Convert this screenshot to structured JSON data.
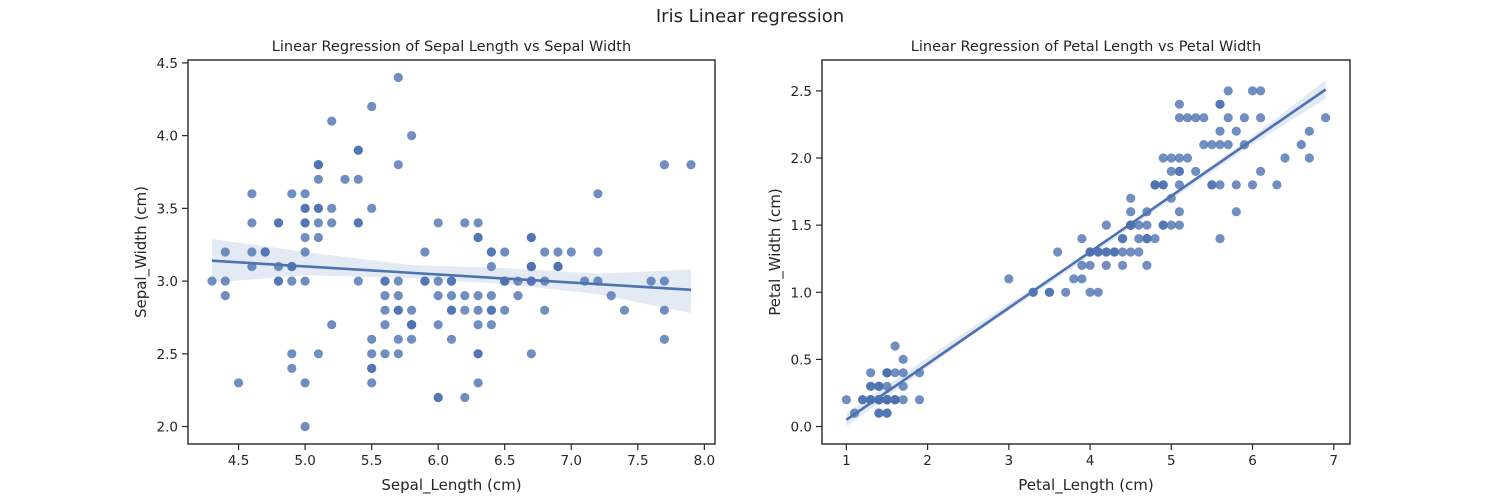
{
  "figure": {
    "suptitle": "Iris Linear regression"
  },
  "colors": {
    "points": "#4c72b0",
    "line": "#4c72b0",
    "band": "#4c72b0",
    "axes": "#262626"
  },
  "chart_data": [
    {
      "type": "scatter",
      "title": "Linear Regression of Sepal Length vs Sepal Width",
      "xlabel": "Sepal_Length (cm)",
      "ylabel": "Sepal_Width (cm)",
      "xlim": [
        4.12,
        8.08
      ],
      "ylim": [
        1.88,
        4.52
      ],
      "xticks": [
        "4.5",
        "5.0",
        "5.5",
        "6.0",
        "6.5",
        "7.0",
        "7.5",
        "8.0"
      ],
      "yticks": [
        "2.0",
        "2.5",
        "3.0",
        "3.5",
        "4.0",
        "4.5"
      ],
      "grid": false,
      "regression": {
        "x": [
          4.3,
          7.9
        ],
        "y": [
          3.14,
          2.94
        ]
      },
      "confidence_band": {
        "x": [
          4.3,
          5.0,
          5.8,
          6.5,
          7.2,
          7.9
        ],
        "lower": [
          2.99,
          3.04,
          3.02,
          2.98,
          2.91,
          2.78
        ],
        "upper": [
          3.29,
          3.2,
          3.11,
          3.09,
          3.05,
          3.08
        ]
      },
      "points": [
        [
          5.1,
          3.5
        ],
        [
          4.9,
          3.0
        ],
        [
          4.7,
          3.2
        ],
        [
          4.6,
          3.1
        ],
        [
          5.0,
          3.6
        ],
        [
          5.4,
          3.9
        ],
        [
          4.6,
          3.4
        ],
        [
          5.0,
          3.4
        ],
        [
          4.4,
          2.9
        ],
        [
          4.9,
          3.1
        ],
        [
          5.4,
          3.7
        ],
        [
          4.8,
          3.4
        ],
        [
          4.8,
          3.0
        ],
        [
          4.3,
          3.0
        ],
        [
          5.8,
          4.0
        ],
        [
          5.7,
          4.4
        ],
        [
          5.4,
          3.9
        ],
        [
          5.1,
          3.5
        ],
        [
          5.7,
          3.8
        ],
        [
          5.1,
          3.8
        ],
        [
          5.4,
          3.4
        ],
        [
          5.1,
          3.7
        ],
        [
          4.6,
          3.6
        ],
        [
          5.1,
          3.3
        ],
        [
          4.8,
          3.4
        ],
        [
          5.0,
          3.0
        ],
        [
          5.0,
          3.4
        ],
        [
          5.2,
          3.5
        ],
        [
          5.2,
          3.4
        ],
        [
          4.7,
          3.2
        ],
        [
          4.8,
          3.1
        ],
        [
          5.4,
          3.4
        ],
        [
          5.2,
          4.1
        ],
        [
          5.5,
          4.2
        ],
        [
          4.9,
          3.1
        ],
        [
          5.0,
          3.2
        ],
        [
          5.5,
          3.5
        ],
        [
          4.9,
          3.6
        ],
        [
          4.4,
          3.0
        ],
        [
          5.1,
          3.4
        ],
        [
          5.0,
          3.5
        ],
        [
          4.5,
          2.3
        ],
        [
          4.4,
          3.2
        ],
        [
          5.0,
          3.5
        ],
        [
          5.1,
          3.8
        ],
        [
          4.8,
          3.0
        ],
        [
          5.1,
          3.8
        ],
        [
          4.6,
          3.2
        ],
        [
          5.3,
          3.7
        ],
        [
          5.0,
          3.3
        ],
        [
          7.0,
          3.2
        ],
        [
          6.4,
          3.2
        ],
        [
          6.9,
          3.1
        ],
        [
          5.5,
          2.3
        ],
        [
          6.5,
          2.8
        ],
        [
          5.7,
          2.8
        ],
        [
          6.3,
          3.3
        ],
        [
          4.9,
          2.4
        ],
        [
          6.6,
          2.9
        ],
        [
          5.2,
          2.7
        ],
        [
          5.0,
          2.0
        ],
        [
          5.9,
          3.0
        ],
        [
          6.0,
          2.2
        ],
        [
          6.1,
          2.9
        ],
        [
          5.6,
          2.9
        ],
        [
          6.7,
          3.1
        ],
        [
          5.6,
          3.0
        ],
        [
          5.8,
          2.7
        ],
        [
          6.2,
          2.2
        ],
        [
          5.6,
          2.5
        ],
        [
          5.9,
          3.2
        ],
        [
          6.1,
          2.8
        ],
        [
          6.3,
          2.5
        ],
        [
          6.1,
          2.8
        ],
        [
          6.4,
          2.9
        ],
        [
          6.6,
          3.0
        ],
        [
          6.8,
          2.8
        ],
        [
          6.7,
          3.0
        ],
        [
          6.0,
          2.9
        ],
        [
          5.7,
          2.6
        ],
        [
          5.5,
          2.4
        ],
        [
          5.5,
          2.4
        ],
        [
          5.8,
          2.7
        ],
        [
          6.0,
          2.7
        ],
        [
          5.4,
          3.0
        ],
        [
          6.0,
          3.4
        ],
        [
          6.7,
          3.1
        ],
        [
          6.3,
          2.3
        ],
        [
          5.6,
          3.0
        ],
        [
          5.5,
          2.5
        ],
        [
          5.5,
          2.6
        ],
        [
          6.1,
          3.0
        ],
        [
          5.8,
          2.6
        ],
        [
          5.0,
          2.3
        ],
        [
          5.6,
          2.7
        ],
        [
          5.7,
          3.0
        ],
        [
          5.7,
          2.9
        ],
        [
          6.2,
          2.9
        ],
        [
          5.1,
          2.5
        ],
        [
          5.7,
          2.8
        ],
        [
          6.3,
          3.3
        ],
        [
          5.8,
          2.7
        ],
        [
          7.1,
          3.0
        ],
        [
          6.3,
          2.9
        ],
        [
          6.5,
          3.0
        ],
        [
          7.6,
          3.0
        ],
        [
          4.9,
          2.5
        ],
        [
          7.3,
          2.9
        ],
        [
          6.7,
          2.5
        ],
        [
          7.2,
          3.6
        ],
        [
          6.5,
          3.2
        ],
        [
          6.4,
          2.7
        ],
        [
          6.8,
          3.0
        ],
        [
          5.7,
          2.5
        ],
        [
          5.8,
          2.8
        ],
        [
          6.4,
          3.2
        ],
        [
          6.5,
          3.0
        ],
        [
          7.7,
          3.8
        ],
        [
          7.7,
          2.6
        ],
        [
          6.0,
          2.2
        ],
        [
          6.9,
          3.2
        ],
        [
          5.6,
          2.8
        ],
        [
          7.7,
          2.8
        ],
        [
          6.3,
          2.7
        ],
        [
          6.7,
          3.3
        ],
        [
          7.2,
          3.2
        ],
        [
          6.2,
          2.8
        ],
        [
          6.1,
          3.0
        ],
        [
          6.4,
          2.8
        ],
        [
          7.2,
          3.0
        ],
        [
          7.4,
          2.8
        ],
        [
          7.9,
          3.8
        ],
        [
          6.4,
          2.8
        ],
        [
          6.3,
          2.8
        ],
        [
          6.1,
          2.6
        ],
        [
          7.7,
          3.0
        ],
        [
          6.3,
          3.4
        ],
        [
          6.4,
          3.1
        ],
        [
          6.0,
          3.0
        ],
        [
          6.9,
          3.1
        ],
        [
          6.7,
          3.1
        ],
        [
          6.9,
          3.1
        ],
        [
          5.8,
          2.7
        ],
        [
          6.8,
          3.2
        ],
        [
          6.7,
          3.3
        ],
        [
          6.7,
          3.0
        ],
        [
          6.3,
          2.5
        ],
        [
          6.5,
          3.0
        ],
        [
          6.2,
          3.4
        ],
        [
          5.9,
          3.0
        ]
      ]
    },
    {
      "type": "scatter",
      "title": "Linear Regression of Petal Length vs Petal Width",
      "xlabel": "Petal_Length (cm)",
      "ylabel": "Petal_Width (cm)",
      "xlim": [
        0.7,
        7.2
      ],
      "ylim": [
        -0.13,
        2.73
      ],
      "xticks": [
        "1",
        "2",
        "3",
        "4",
        "5",
        "6",
        "7"
      ],
      "yticks": [
        "0.0",
        "0.5",
        "1.0",
        "1.5",
        "2.0",
        "2.5"
      ],
      "grid": false,
      "regression": {
        "x": [
          1.0,
          6.9
        ],
        "y": [
          0.05,
          2.51
        ]
      },
      "confidence_band": {
        "x": [
          1.0,
          2.5,
          3.76,
          5.0,
          6.0,
          6.9
        ],
        "lower": [
          0.0,
          0.66,
          1.17,
          1.69,
          2.1,
          2.44
        ],
        "upper": [
          0.1,
          0.72,
          1.21,
          1.73,
          2.16,
          2.58
        ]
      },
      "points": [
        [
          1.4,
          0.2
        ],
        [
          1.4,
          0.2
        ],
        [
          1.3,
          0.2
        ],
        [
          1.5,
          0.2
        ],
        [
          1.4,
          0.2
        ],
        [
          1.7,
          0.4
        ],
        [
          1.4,
          0.3
        ],
        [
          1.5,
          0.2
        ],
        [
          1.4,
          0.2
        ],
        [
          1.5,
          0.1
        ],
        [
          1.5,
          0.2
        ],
        [
          1.6,
          0.2
        ],
        [
          1.4,
          0.1
        ],
        [
          1.1,
          0.1
        ],
        [
          1.2,
          0.2
        ],
        [
          1.5,
          0.4
        ],
        [
          1.3,
          0.4
        ],
        [
          1.4,
          0.3
        ],
        [
          1.7,
          0.3
        ],
        [
          1.5,
          0.3
        ],
        [
          1.7,
          0.2
        ],
        [
          1.5,
          0.4
        ],
        [
          1.0,
          0.2
        ],
        [
          1.7,
          0.5
        ],
        [
          1.9,
          0.2
        ],
        [
          1.6,
          0.2
        ],
        [
          1.6,
          0.4
        ],
        [
          1.5,
          0.2
        ],
        [
          1.4,
          0.2
        ],
        [
          1.6,
          0.2
        ],
        [
          1.6,
          0.2
        ],
        [
          1.5,
          0.4
        ],
        [
          1.5,
          0.1
        ],
        [
          1.4,
          0.2
        ],
        [
          1.5,
          0.2
        ],
        [
          1.2,
          0.2
        ],
        [
          1.3,
          0.2
        ],
        [
          1.4,
          0.1
        ],
        [
          1.3,
          0.2
        ],
        [
          1.5,
          0.2
        ],
        [
          1.3,
          0.3
        ],
        [
          1.3,
          0.3
        ],
        [
          1.3,
          0.2
        ],
        [
          1.6,
          0.6
        ],
        [
          1.9,
          0.4
        ],
        [
          1.4,
          0.3
        ],
        [
          1.6,
          0.2
        ],
        [
          1.4,
          0.2
        ],
        [
          1.5,
          0.2
        ],
        [
          1.4,
          0.2
        ],
        [
          4.7,
          1.4
        ],
        [
          4.5,
          1.5
        ],
        [
          4.9,
          1.5
        ],
        [
          4.0,
          1.3
        ],
        [
          4.6,
          1.5
        ],
        [
          4.5,
          1.3
        ],
        [
          4.7,
          1.6
        ],
        [
          3.3,
          1.0
        ],
        [
          4.6,
          1.3
        ],
        [
          3.9,
          1.4
        ],
        [
          3.5,
          1.0
        ],
        [
          4.2,
          1.5
        ],
        [
          4.0,
          1.0
        ],
        [
          4.7,
          1.4
        ],
        [
          3.6,
          1.3
        ],
        [
          4.4,
          1.4
        ],
        [
          4.5,
          1.5
        ],
        [
          4.1,
          1.0
        ],
        [
          4.5,
          1.5
        ],
        [
          3.9,
          1.1
        ],
        [
          4.8,
          1.8
        ],
        [
          4.0,
          1.3
        ],
        [
          4.9,
          1.5
        ],
        [
          4.7,
          1.2
        ],
        [
          4.3,
          1.3
        ],
        [
          4.4,
          1.4
        ],
        [
          4.8,
          1.4
        ],
        [
          5.0,
          1.7
        ],
        [
          4.5,
          1.5
        ],
        [
          3.5,
          1.0
        ],
        [
          3.8,
          1.1
        ],
        [
          3.7,
          1.0
        ],
        [
          3.9,
          1.2
        ],
        [
          5.1,
          1.6
        ],
        [
          4.5,
          1.5
        ],
        [
          4.5,
          1.6
        ],
        [
          4.7,
          1.5
        ],
        [
          4.4,
          1.3
        ],
        [
          4.1,
          1.3
        ],
        [
          4.0,
          1.3
        ],
        [
          4.4,
          1.2
        ],
        [
          4.6,
          1.4
        ],
        [
          4.0,
          1.2
        ],
        [
          3.3,
          1.0
        ],
        [
          4.2,
          1.3
        ],
        [
          4.2,
          1.2
        ],
        [
          4.2,
          1.3
        ],
        [
          4.3,
          1.3
        ],
        [
          3.0,
          1.1
        ],
        [
          4.1,
          1.3
        ],
        [
          6.0,
          2.5
        ],
        [
          5.1,
          1.9
        ],
        [
          5.9,
          2.1
        ],
        [
          5.6,
          1.8
        ],
        [
          5.8,
          2.2
        ],
        [
          6.6,
          2.1
        ],
        [
          4.5,
          1.7
        ],
        [
          6.3,
          1.8
        ],
        [
          5.8,
          1.8
        ],
        [
          6.1,
          2.5
        ],
        [
          5.1,
          2.0
        ],
        [
          5.3,
          1.9
        ],
        [
          5.5,
          2.1
        ],
        [
          5.0,
          2.0
        ],
        [
          5.1,
          2.4
        ],
        [
          5.3,
          2.3
        ],
        [
          5.5,
          1.8
        ],
        [
          6.7,
          2.2
        ],
        [
          6.9,
          2.3
        ],
        [
          5.0,
          1.5
        ],
        [
          5.7,
          2.3
        ],
        [
          4.9,
          2.0
        ],
        [
          6.7,
          2.0
        ],
        [
          4.9,
          1.8
        ],
        [
          5.7,
          2.1
        ],
        [
          6.0,
          1.8
        ],
        [
          4.8,
          1.8
        ],
        [
          4.9,
          1.8
        ],
        [
          5.6,
          2.1
        ],
        [
          5.8,
          1.6
        ],
        [
          6.1,
          1.9
        ],
        [
          6.4,
          2.0
        ],
        [
          5.6,
          2.2
        ],
        [
          5.1,
          1.5
        ],
        [
          5.6,
          1.4
        ],
        [
          6.1,
          2.3
        ],
        [
          5.6,
          2.4
        ],
        [
          5.5,
          1.8
        ],
        [
          4.8,
          1.8
        ],
        [
          5.4,
          2.1
        ],
        [
          5.6,
          2.4
        ],
        [
          5.1,
          2.3
        ],
        [
          5.1,
          1.9
        ],
        [
          5.9,
          2.3
        ],
        [
          5.7,
          2.5
        ],
        [
          5.2,
          2.3
        ],
        [
          5.0,
          1.9
        ],
        [
          5.2,
          2.0
        ],
        [
          5.4,
          2.3
        ],
        [
          5.1,
          1.8
        ]
      ]
    }
  ]
}
